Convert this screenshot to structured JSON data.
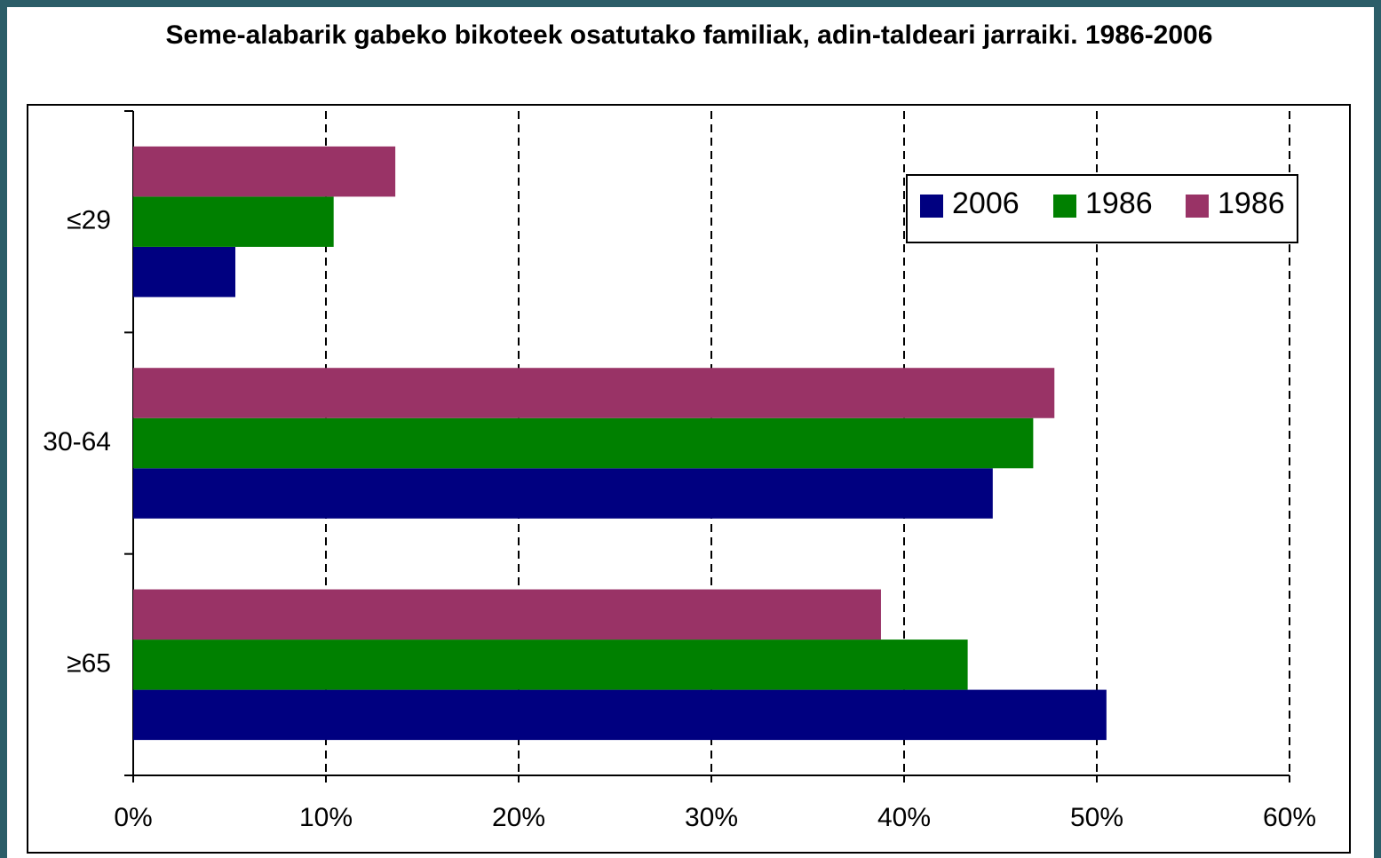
{
  "chart_data": {
    "type": "bar",
    "orientation": "horizontal",
    "title": "Seme-alabarik gabeko bikoteek osatutako familiak, adin-taldeari jarraiki. 1986-2006",
    "categories": [
      "≤29",
      "30-64",
      "≥65"
    ],
    "series": [
      {
        "name": "2006",
        "color": "#000080",
        "values": [
          5.3,
          44.6,
          50.5
        ]
      },
      {
        "name": "1986",
        "color": "#008000",
        "values": [
          10.4,
          46.7,
          43.3
        ]
      },
      {
        "name": "1986",
        "color": "#993366",
        "values": [
          13.6,
          47.8,
          38.8
        ]
      }
    ],
    "xlim": [
      0,
      60
    ],
    "xticks": [
      {
        "value": 0,
        "label": "0%"
      },
      {
        "value": 10,
        "label": "10%"
      },
      {
        "value": 20,
        "label": "20%"
      },
      {
        "value": 30,
        "label": "30%"
      },
      {
        "value": 40,
        "label": "40%"
      },
      {
        "value": 50,
        "label": "50%"
      },
      {
        "value": 60,
        "label": "60%"
      }
    ],
    "grid": true,
    "legend": "upper right"
  }
}
